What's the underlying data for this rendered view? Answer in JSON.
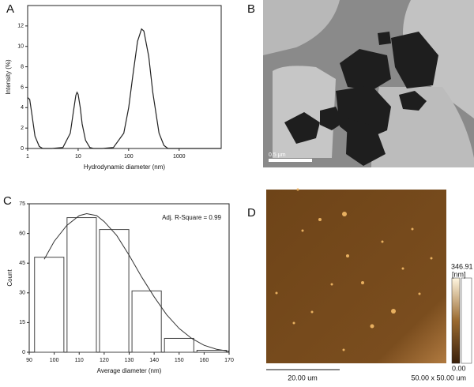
{
  "chart_data": [
    {
      "type": "line",
      "panel_label": "A",
      "x_label": "Hydrodynamic diameter (nm)",
      "y_label": "Intensity (%)",
      "log_x": true,
      "xlim": [
        1,
        6800
      ],
      "xticks": [
        1,
        10,
        100,
        1000
      ],
      "ylim": [
        0,
        14
      ],
      "yticks": [
        0,
        2,
        4,
        6,
        8,
        10,
        12
      ],
      "color": "#222222",
      "x": [
        1,
        1.1,
        1.2,
        1.4,
        1.7,
        2,
        3,
        5,
        7,
        8,
        9,
        9.5,
        10,
        11,
        12,
        14,
        17,
        20,
        30,
        50,
        80,
        100,
        120,
        150,
        180,
        200,
        250,
        300,
        400,
        500,
        600,
        1000,
        6800
      ],
      "values": [
        5,
        4.8,
        3.5,
        1.2,
        0.2,
        0,
        0,
        0.1,
        1.5,
        3.5,
        5.2,
        5.5,
        5.3,
        4,
        2.4,
        0.8,
        0.1,
        0,
        0,
        0.1,
        1.5,
        4,
        7,
        10.5,
        11.7,
        11.5,
        9,
        5.5,
        1.5,
        0.3,
        0,
        0,
        0
      ]
    },
    {
      "type": "histogram",
      "panel_label": "C",
      "x_label": "Average diameter (nm)",
      "y_label": "Count",
      "annotation": "Adj. R-Square = 0.99",
      "xlim": [
        90,
        170
      ],
      "xticks": [
        90,
        100,
        110,
        120,
        130,
        140,
        150,
        160,
        170
      ],
      "ylim": [
        0,
        75
      ],
      "yticks": [
        0,
        15,
        30,
        45,
        60,
        75
      ],
      "color": "#444444",
      "bins": [
        91.5,
        104.5,
        117.5,
        130.5,
        143.5,
        156.5,
        169.5
      ],
      "values": [
        48,
        68,
        62,
        31,
        7,
        1
      ],
      "fit": {
        "x": [
          96,
          100,
          105,
          110,
          113,
          117,
          120,
          125,
          130,
          135,
          140,
          145,
          150,
          155,
          160,
          165,
          170
        ],
        "values": [
          47,
          56,
          64,
          69,
          70,
          69,
          66,
          59,
          49,
          38,
          28,
          19,
          12,
          7,
          3.5,
          1.5,
          0.5
        ]
      }
    }
  ],
  "images": [
    {
      "panel_label": "B",
      "scale_bar": "0.5 μm"
    },
    {
      "panel_label": "D",
      "scale_bar": "20.00 um",
      "scan_size": "50.00 x 50.00 um",
      "colorbar_max": "346.91",
      "colorbar_unit": "[nm]",
      "colorbar_min": "0.00"
    }
  ]
}
